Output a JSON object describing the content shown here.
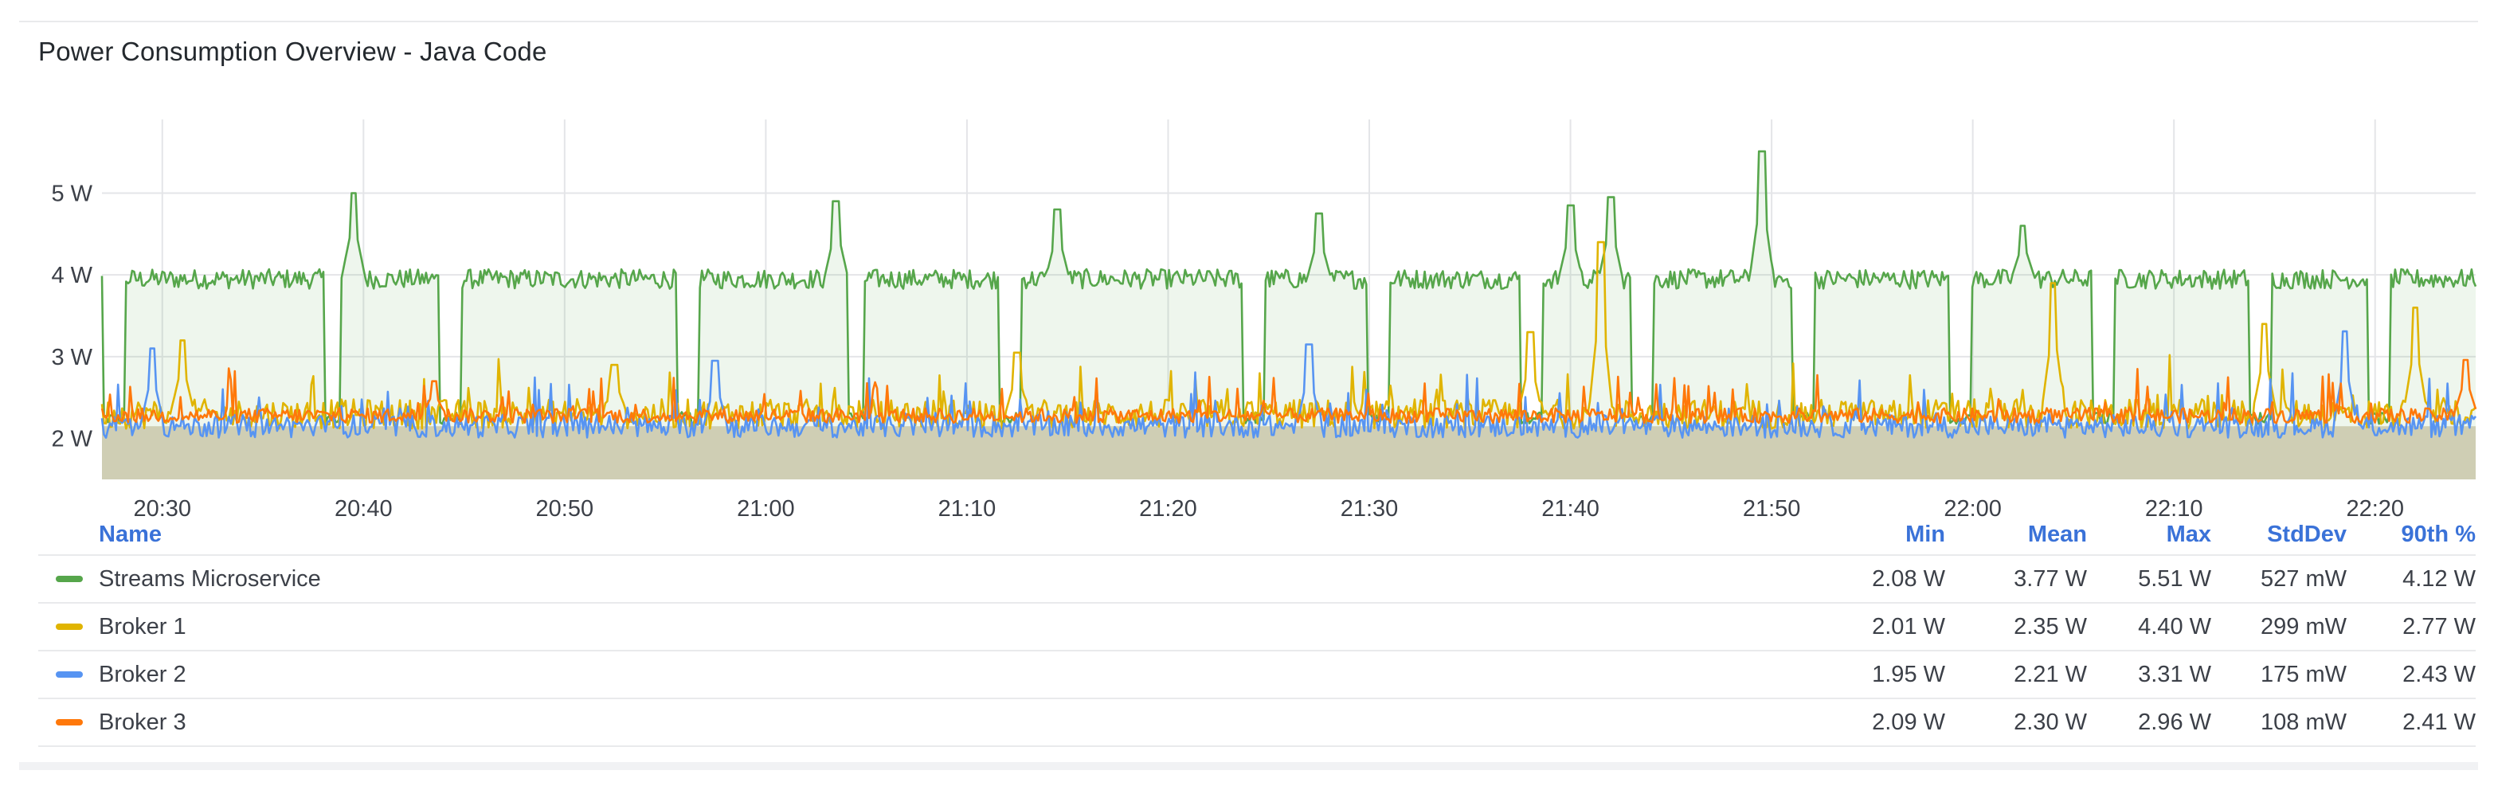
{
  "panel": {
    "title": "Power Consumption Overview - Java Code"
  },
  "chart_data": {
    "type": "line",
    "title": "Power Consumption Overview - Java Code",
    "xlabel": "",
    "ylabel": "",
    "x_range": [
      "20:27",
      "22:25"
    ],
    "ylim": [
      1.5,
      5.9
    ],
    "x_ticks": [
      "20:30",
      "20:40",
      "20:50",
      "21:00",
      "21:10",
      "21:20",
      "21:30",
      "21:40",
      "21:50",
      "22:00",
      "22:10",
      "22:20"
    ],
    "y_ticks": [
      {
        "value": 2,
        "label": "2 W"
      },
      {
        "value": 3,
        "label": "3 W"
      },
      {
        "value": 4,
        "label": "4 W"
      },
      {
        "value": 5,
        "label": "5 W"
      }
    ],
    "grid": true,
    "fill_area": true,
    "legend_placement": "bottom-table",
    "series": [
      {
        "name": "Streams Microservice",
        "color": "#56a64b",
        "pattern": "high-with-dips",
        "baseline_w": 3.95,
        "noise_w": 0.12,
        "dips_at_min": [
          0.6,
          11.6,
          17.3,
          29.1,
          37.3,
          45.1,
          57.2,
          63.5,
          71.1,
          76.6,
          84.6,
          92.4,
          99.5,
          107.3,
          113.2
        ],
        "spikes": [
          {
            "t": 12.5,
            "v": 5.0
          },
          {
            "t": 36.5,
            "v": 4.9
          },
          {
            "t": 47.5,
            "v": 4.8
          },
          {
            "t": 60.5,
            "v": 4.75
          },
          {
            "t": 73.0,
            "v": 4.85
          },
          {
            "t": 75.0,
            "v": 4.95
          },
          {
            "t": 82.5,
            "v": 5.51
          },
          {
            "t": 95.5,
            "v": 4.6
          }
        ],
        "summary": {
          "min": "2.08 W",
          "mean": "3.77 W",
          "max": "5.51 W",
          "stddev": "527 mW",
          "p90": "4.12 W"
        }
      },
      {
        "name": "Broker 1",
        "color": "#e0b400",
        "pattern": "noisy-low",
        "baseline_w": 2.3,
        "noise_w": 0.18,
        "spikes": [
          {
            "t": 4.0,
            "v": 3.2
          },
          {
            "t": 25.5,
            "v": 2.9
          },
          {
            "t": 45.5,
            "v": 3.05
          },
          {
            "t": 71.0,
            "v": 3.3
          },
          {
            "t": 74.5,
            "v": 4.4
          },
          {
            "t": 97.0,
            "v": 3.9
          },
          {
            "t": 107.5,
            "v": 3.4
          },
          {
            "t": 115.0,
            "v": 3.6
          }
        ],
        "summary": {
          "min": "2.01 W",
          "mean": "2.35 W",
          "max": "4.40 W",
          "stddev": "299 mW",
          "p90": "2.77 W"
        }
      },
      {
        "name": "Broker 2",
        "color": "#5794f2",
        "pattern": "noisy-low",
        "baseline_w": 2.15,
        "noise_w": 0.14,
        "spikes": [
          {
            "t": 2.5,
            "v": 3.1
          },
          {
            "t": 30.5,
            "v": 2.95
          },
          {
            "t": 60.0,
            "v": 3.15
          },
          {
            "t": 111.5,
            "v": 3.31
          }
        ],
        "summary": {
          "min": "1.95 W",
          "mean": "2.21 W",
          "max": "3.31 W",
          "stddev": "175 mW",
          "p90": "2.43 W"
        }
      },
      {
        "name": "Broker 3",
        "color": "#ff780a",
        "pattern": "noisy-low",
        "baseline_w": 2.28,
        "noise_w": 0.09,
        "spikes": [
          {
            "t": 16.5,
            "v": 2.7
          },
          {
            "t": 117.5,
            "v": 2.96
          }
        ],
        "summary": {
          "min": "2.09 W",
          "mean": "2.30 W",
          "max": "2.96 W",
          "stddev": "108 mW",
          "p90": "2.41 W"
        }
      }
    ]
  },
  "legend": {
    "headers": {
      "name": "Name",
      "min": "Min",
      "mean": "Mean",
      "max": "Max",
      "stddev": "StdDev",
      "p90": "90th %"
    }
  }
}
